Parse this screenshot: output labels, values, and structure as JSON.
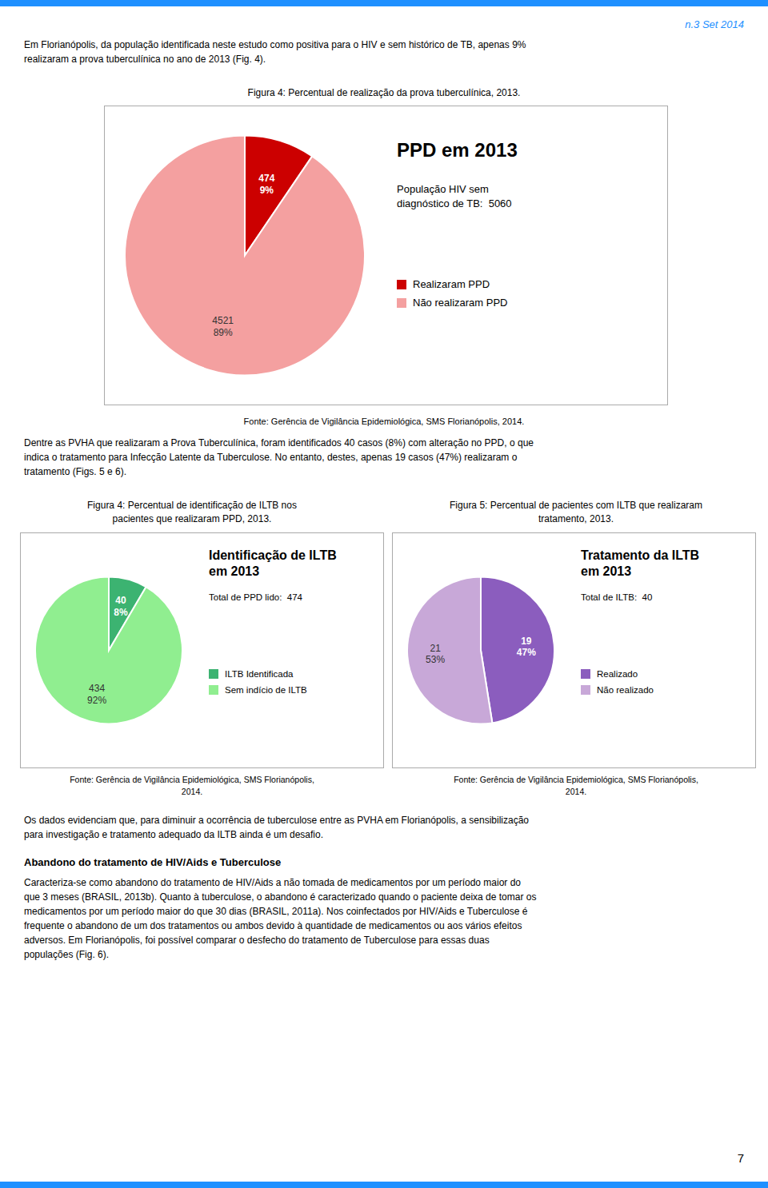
{
  "page": {
    "header": "n.3 Set 2014",
    "intro": [
      "Em Florianópolis, da população identificada neste estudo como positiva para o HIV e sem histórico de TB, apenas 9%",
      "realizaram a prova tuberculínica no ano de 2013 (Fig. 4)."
    ],
    "middle": [
      "Dentre as PVHA que realizaram a Prova Tuberculínica, foram identificados 40 casos (8%) com alteração no PPD, o que",
      "indica o tratamento para Infecção Latente da Tuberculose. No entanto, destes, apenas 19 casos (47%) realizaram o",
      "tratamento (Figs. 5 e 6)."
    ],
    "closing": [
      "Os dados evidenciam que, para diminuir a ocorrência de tuberculose entre as PVHA em Florianópolis, a sensibilização",
      "para investigação e tratamento adequado da ILTB ainda é um desafio."
    ],
    "heading": "Abandono do tratamento de HIV/Aids e Tuberculose",
    "body": [
      "Caracteriza-se como abandono do tratamento de HIV/Aids a não tomada de medicamentos por um período maior do",
      "que 3 meses (BRASIL, 2013b). Quanto à tuberculose, o abandono é caracterizado quando o paciente deixa de tomar os",
      "medicamentos por um período maior do que 30 dias (BRASIL, 2011a). Nos coinfectados por HIV/Aids e Tuberculose é",
      "frequente o abandono de um dos tratamentos ou ambos devido à quantidade de medicamentos ou aos vários efeitos",
      "adversos. Em Florianópolis, foi possível comparar o desfecho do tratamento de Tuberculose para essas duas",
      "populações (Fig. 6)."
    ],
    "page_number": "7",
    "accent_color": "#1e90ff",
    "text_color": "#000000",
    "background": "#ffffff"
  },
  "chart_data": [
    {
      "type": "pie",
      "caption": "Figura 4: Percentual de realização da prova tuberculínica, 2013.",
      "title": "PPD em 2013",
      "subtitle": "População HIV sem\ndiagnóstico de TB:  5060",
      "categories": [
        "Realizaram PPD",
        "Não realizaram PPD"
      ],
      "values": [
        474,
        4521
      ],
      "value_labels": [
        "474\n9%",
        "4521\n89%"
      ],
      "colors": [
        "#cc0000",
        "#f4a0a0"
      ],
      "data_labels": true,
      "legend": "right",
      "source": "Fonte: Gerência de Vigilância Epidemiológica, SMS Florianópolis, 2014."
    },
    {
      "type": "pie",
      "caption": "Figura 4: Percentual de identificação de ILTB nos\npacientes que realizaram PPD, 2013.",
      "title": "Identificação de ILTB\nem 2013",
      "subtitle": "Total de PPD lido:  474",
      "categories": [
        "ILTB Identificada",
        "Sem indício de ILTB"
      ],
      "values": [
        40,
        434
      ],
      "value_labels": [
        "40\n8%",
        "434\n92%"
      ],
      "colors": [
        "#3cb371",
        "#90ee90"
      ],
      "data_labels": true,
      "legend": "right",
      "source": "Fonte: Gerência de Vigilância Epidemiológica, SMS Florianópolis,\n2014."
    },
    {
      "type": "pie",
      "caption": "Figura 5: Percentual de pacientes com ILTB que realizaram\ntratamento, 2013.",
      "title": "Tratamento da ILTB\nem 2013",
      "subtitle": "Total de ILTB:  40",
      "categories": [
        "Realizado",
        "Não realizado"
      ],
      "values": [
        19,
        21
      ],
      "value_labels": [
        "19\n47%",
        "21\n53%"
      ],
      "colors": [
        "#8b5dbe",
        "#c8a8d8"
      ],
      "data_labels": true,
      "legend": "right",
      "source": "Fonte: Gerência de Vigilância Epidemiológica, SMS Florianópolis,\n2014."
    }
  ]
}
